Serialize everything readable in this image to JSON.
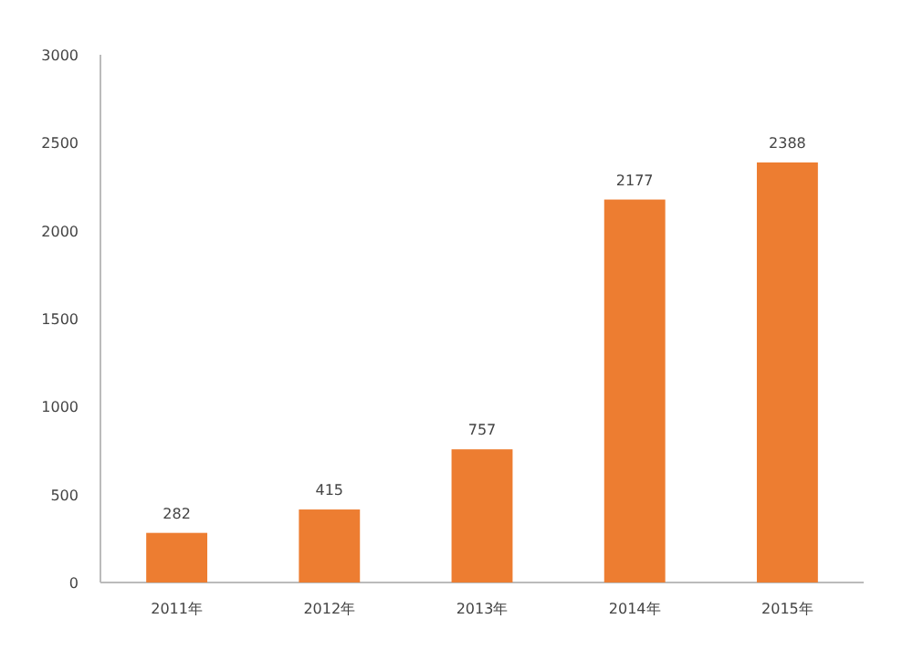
{
  "chart_data": {
    "type": "bar",
    "categories": [
      "2011年",
      "2012年",
      "2013年",
      "2014年",
      "2015年"
    ],
    "values": [
      282,
      415,
      757,
      2177,
      2388
    ],
    "color": "#ed7d31",
    "ylim": [
      0,
      3000
    ],
    "yticks": [
      0,
      500,
      1000,
      1500,
      2000,
      2500,
      3000
    ],
    "data_labels": true,
    "grid": false
  }
}
